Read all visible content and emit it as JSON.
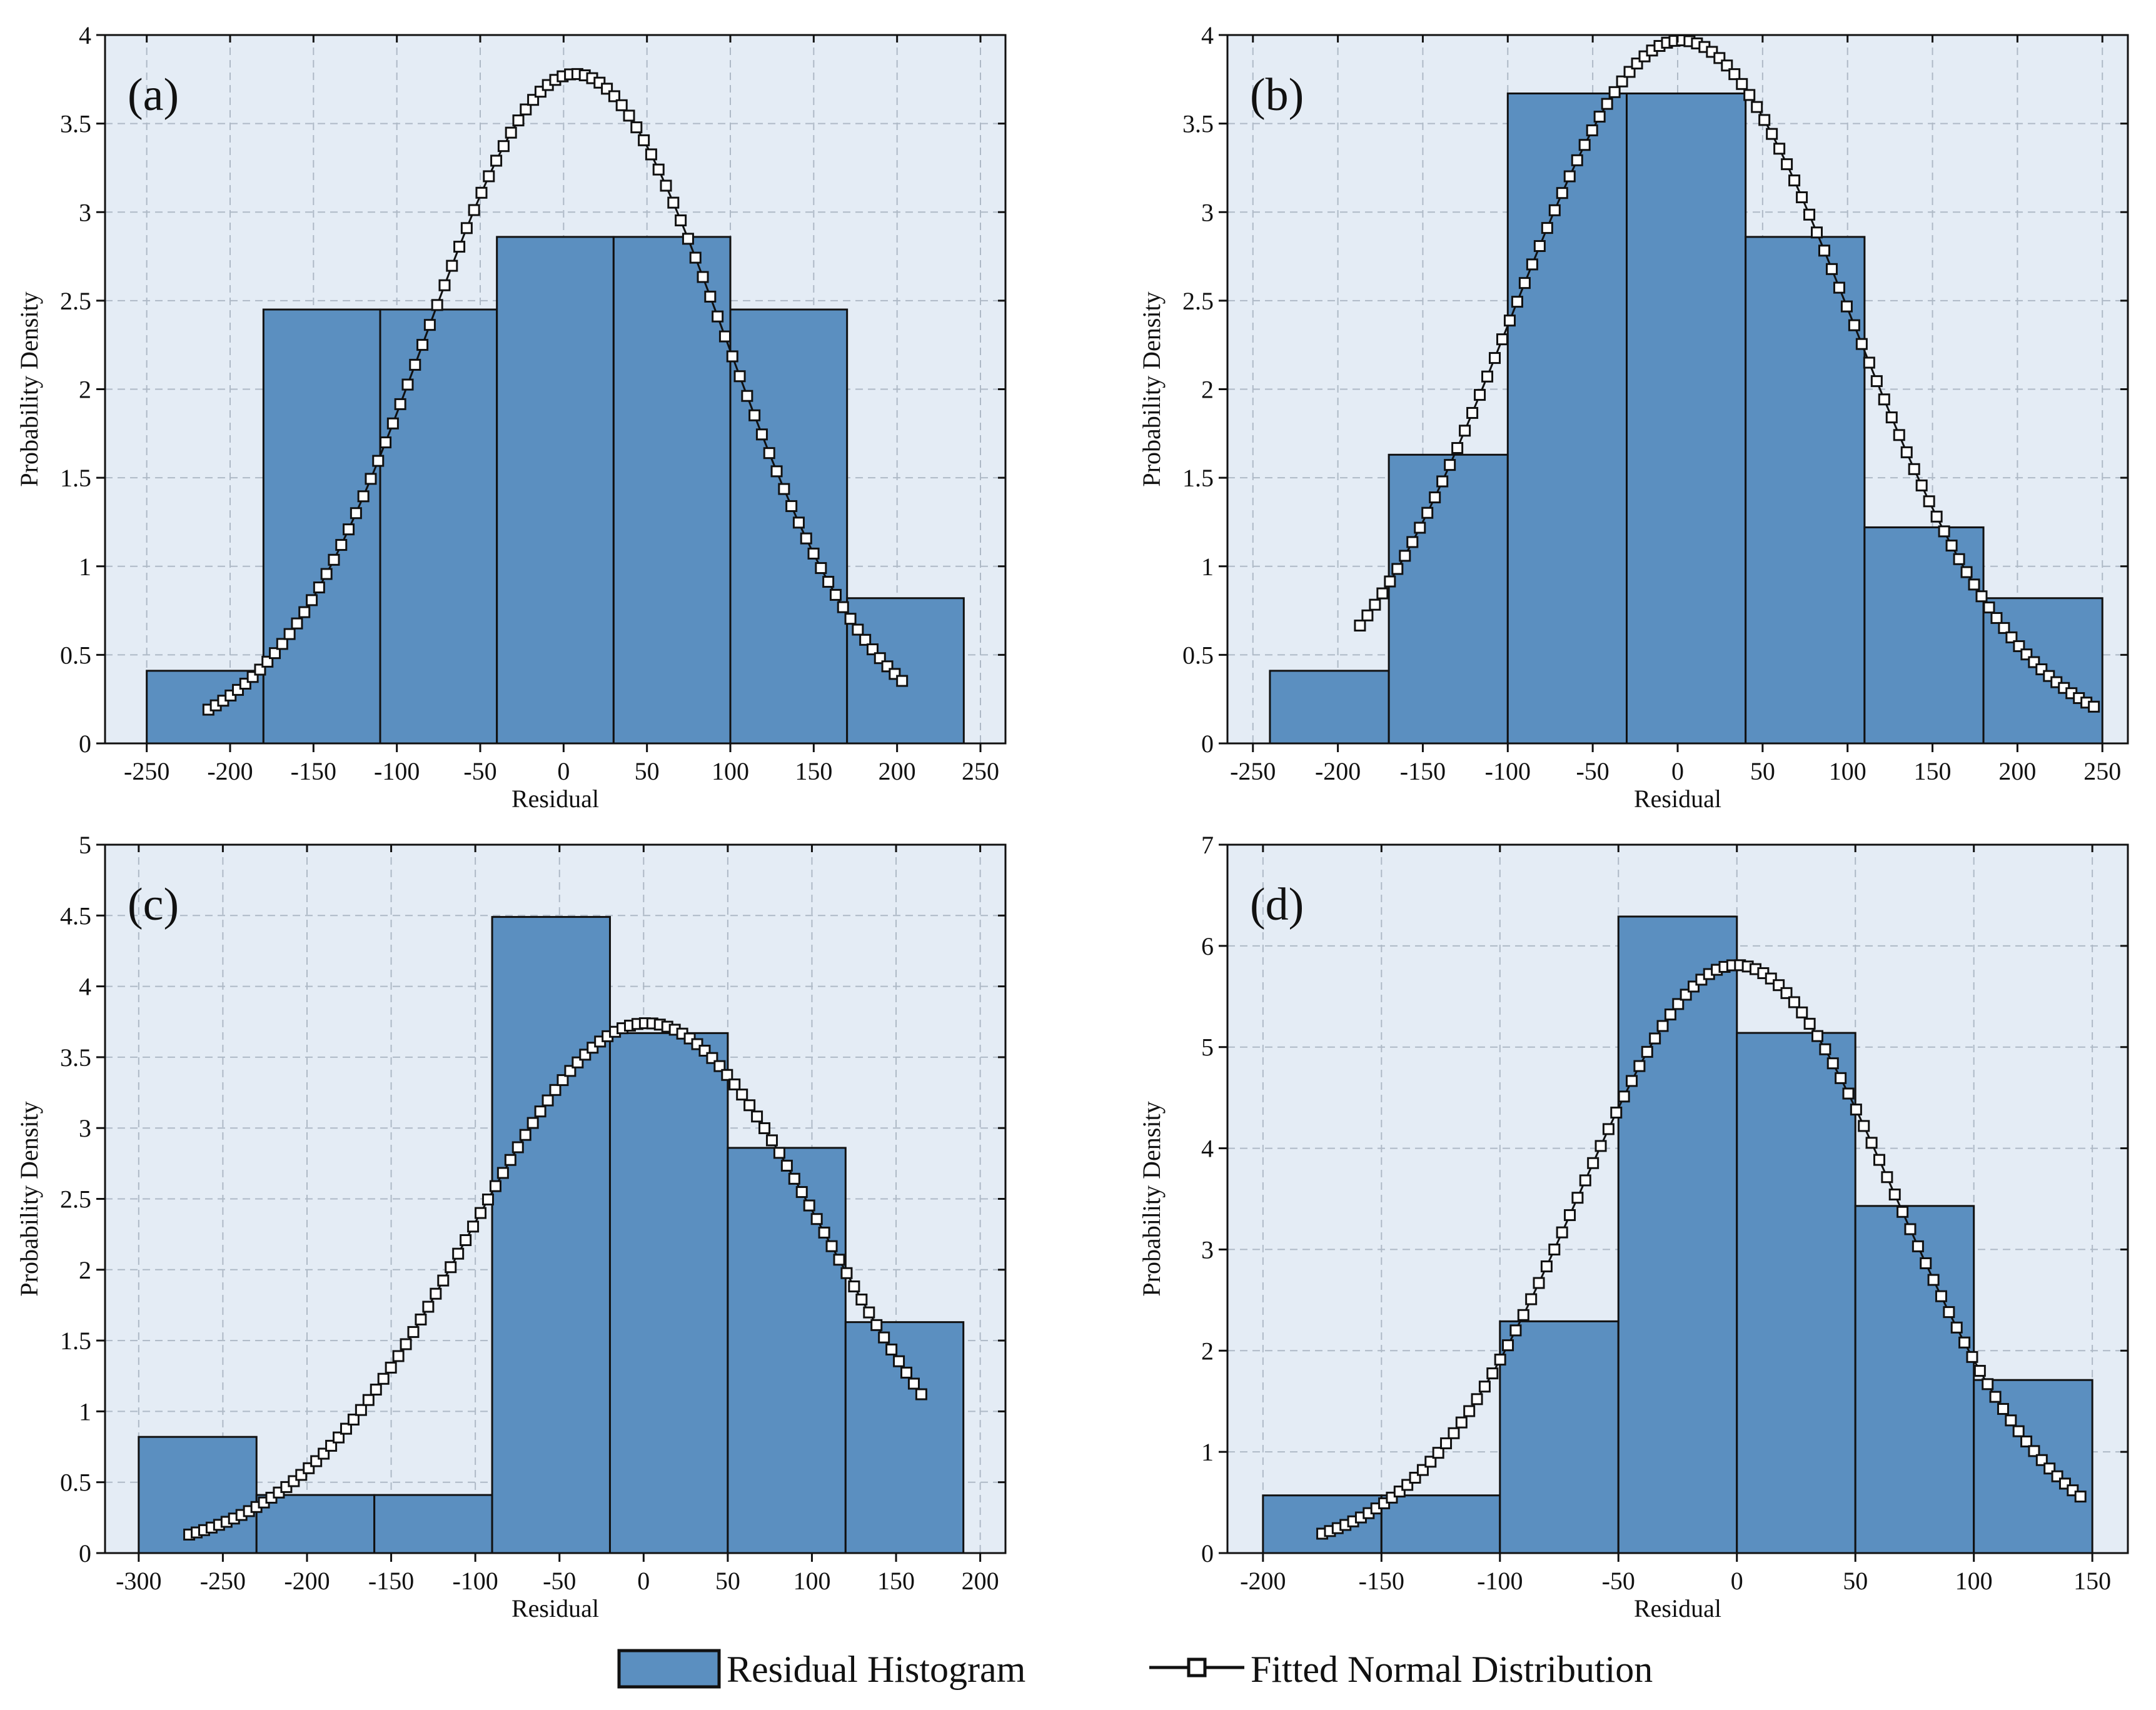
{
  "legend": {
    "histogram_label": "Residual Histogram",
    "curve_label": "Fitted Normal Distribution"
  },
  "colors": {
    "bar_fill": "#5b8fc0",
    "bar_edge": "#111111",
    "plot_bg": "#e4ecf5",
    "grid": "#aeb9c6",
    "marker_fill": "#ffffff",
    "line": "#111111"
  },
  "chart_data": [
    {
      "panel_label": "(a)",
      "type": "bar",
      "xlabel": "Residual",
      "ylabel": "Probability Density",
      "xlim": [
        -275,
        265
      ],
      "ylim": [
        0,
        4
      ],
      "xticks": [
        -250,
        -200,
        -150,
        -100,
        -50,
        0,
        50,
        100,
        150,
        200,
        250
      ],
      "yticks": [
        0,
        0.5,
        1,
        1.5,
        2,
        2.5,
        3,
        3.5,
        4
      ],
      "bins": [
        {
          "start": -250,
          "end": -180,
          "density": 0.41
        },
        {
          "start": -180,
          "end": -110,
          "density": 2.45
        },
        {
          "start": -110,
          "end": -40,
          "density": 2.45
        },
        {
          "start": -40,
          "end": 30,
          "density": 2.86
        },
        {
          "start": 30,
          "end": 100,
          "density": 2.86
        },
        {
          "start": 100,
          "end": 170,
          "density": 2.45
        },
        {
          "start": 170,
          "end": 240,
          "density": 0.82
        }
      ],
      "fit": {
        "mean": 7,
        "peak": 3.78,
        "sigma": 90,
        "x_start": -213,
        "x_end": 203,
        "points": 95
      }
    },
    {
      "panel_label": "(b)",
      "type": "bar",
      "xlabel": "Residual",
      "ylabel": "Probability Density",
      "xlim": [
        -265,
        265
      ],
      "ylim": [
        0,
        4
      ],
      "xticks": [
        -250,
        -200,
        -150,
        -100,
        -50,
        0,
        50,
        100,
        150,
        200,
        250
      ],
      "yticks": [
        0,
        0.5,
        1,
        1.5,
        2,
        2.5,
        3,
        3.5,
        4
      ],
      "bins": [
        {
          "start": -240,
          "end": -170,
          "density": 0.41
        },
        {
          "start": -170,
          "end": -100,
          "density": 1.63
        },
        {
          "start": -100,
          "end": -30,
          "density": 3.67
        },
        {
          "start": -30,
          "end": 40,
          "density": 3.67
        },
        {
          "start": 40,
          "end": 110,
          "density": 2.86
        },
        {
          "start": 110,
          "end": 180,
          "density": 1.22
        },
        {
          "start": 180,
          "end": 250,
          "density": 0.82
        }
      ],
      "fit": {
        "mean": 2,
        "peak": 3.97,
        "sigma": 100,
        "x_start": -187,
        "x_end": 245,
        "points": 99
      }
    },
    {
      "panel_label": "(c)",
      "type": "bar",
      "xlabel": "Residual",
      "ylabel": "Probability Density",
      "xlim": [
        -320,
        215
      ],
      "ylim": [
        0,
        5
      ],
      "xticks": [
        -300,
        -250,
        -200,
        -150,
        -100,
        -50,
        0,
        50,
        100,
        150,
        200
      ],
      "yticks": [
        0,
        0.5,
        1,
        1.5,
        2,
        2.5,
        3,
        3.5,
        4,
        4.5,
        5
      ],
      "bins": [
        {
          "start": -300,
          "end": -230,
          "density": 0.82
        },
        {
          "start": -230,
          "end": -160,
          "density": 0.41
        },
        {
          "start": -160,
          "end": -90,
          "density": 0.41
        },
        {
          "start": -90,
          "end": -20,
          "density": 4.49
        },
        {
          "start": -20,
          "end": 50,
          "density": 3.67
        },
        {
          "start": 50,
          "end": 120,
          "density": 2.86
        },
        {
          "start": 120,
          "end": 190,
          "density": 1.63
        }
      ],
      "fit": {
        "mean": 2,
        "peak": 3.74,
        "sigma": 105,
        "x_start": -270,
        "x_end": 165,
        "points": 99
      }
    },
    {
      "panel_label": "(d)",
      "type": "bar",
      "xlabel": "Residual",
      "ylabel": "Probability Density",
      "xlim": [
        -215,
        165
      ],
      "ylim": [
        0,
        7
      ],
      "xticks": [
        -200,
        -150,
        -100,
        -50,
        0,
        50,
        100,
        150
      ],
      "yticks": [
        0,
        1,
        2,
        3,
        4,
        5,
        6,
        7
      ],
      "bins": [
        {
          "start": -200,
          "end": -150,
          "density": 0.57
        },
        {
          "start": -150,
          "end": -100,
          "density": 0.57
        },
        {
          "start": -100,
          "end": -50,
          "density": 2.29
        },
        {
          "start": -50,
          "end": 0,
          "density": 6.29
        },
        {
          "start": 0,
          "end": 50,
          "density": 5.14
        },
        {
          "start": 50,
          "end": 100,
          "density": 3.43
        },
        {
          "start": 100,
          "end": 150,
          "density": 1.71
        }
      ],
      "fit": {
        "mean": 0,
        "peak": 5.81,
        "sigma": 67,
        "x_start": -175,
        "x_end": 145,
        "points": 99
      }
    }
  ]
}
